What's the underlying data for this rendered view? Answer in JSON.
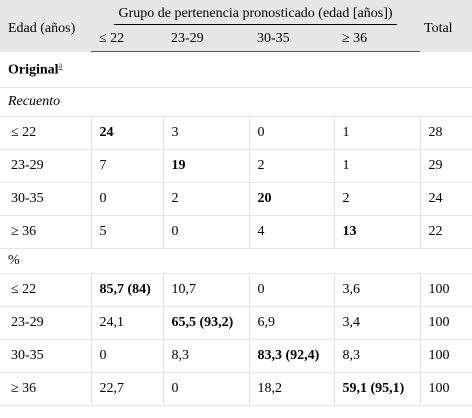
{
  "header": {
    "age_label": "Edad (años)",
    "group_label": "Grupo de pertenencia pronosticado (edad [años])",
    "total_label": "Total",
    "groups": [
      "≤ 22",
      "23-29",
      "30-35",
      "≥ 36"
    ]
  },
  "section": {
    "title": "Original",
    "footnote": "a"
  },
  "count_block": {
    "label": "Recuento",
    "rows": [
      {
        "age": "≤ 22",
        "values": [
          "24",
          "3",
          "0",
          "1"
        ],
        "total": "28",
        "bold_index": 0
      },
      {
        "age": "23-29",
        "values": [
          "7",
          "19",
          "2",
          "1"
        ],
        "total": "29",
        "bold_index": 1
      },
      {
        "age": "30-35",
        "values": [
          "0",
          "2",
          "20",
          "2"
        ],
        "total": "24",
        "bold_index": 2
      },
      {
        "age": "≥ 36",
        "values": [
          "5",
          "0",
          "4",
          "13"
        ],
        "total": "22",
        "bold_index": 3
      }
    ]
  },
  "percent_block": {
    "label": "%",
    "rows": [
      {
        "age": "≤ 22",
        "values": [
          "85,7 (84)",
          "10,7",
          "0",
          "3,6"
        ],
        "total": "100",
        "bold_index": 0
      },
      {
        "age": "23-29",
        "values": [
          "24,1",
          "65,5 (93,2)",
          "6,9",
          "3,4"
        ],
        "total": "100",
        "bold_index": 1
      },
      {
        "age": "30-35",
        "values": [
          "0",
          "8,3",
          "83,3 (92,4)",
          "8,3"
        ],
        "total": "100",
        "bold_index": 2
      },
      {
        "age": "≥ 36",
        "values": [
          "22,7",
          "0",
          "18,2",
          "59,1 (95,1)"
        ],
        "total": "100",
        "bold_index": 3
      }
    ]
  }
}
